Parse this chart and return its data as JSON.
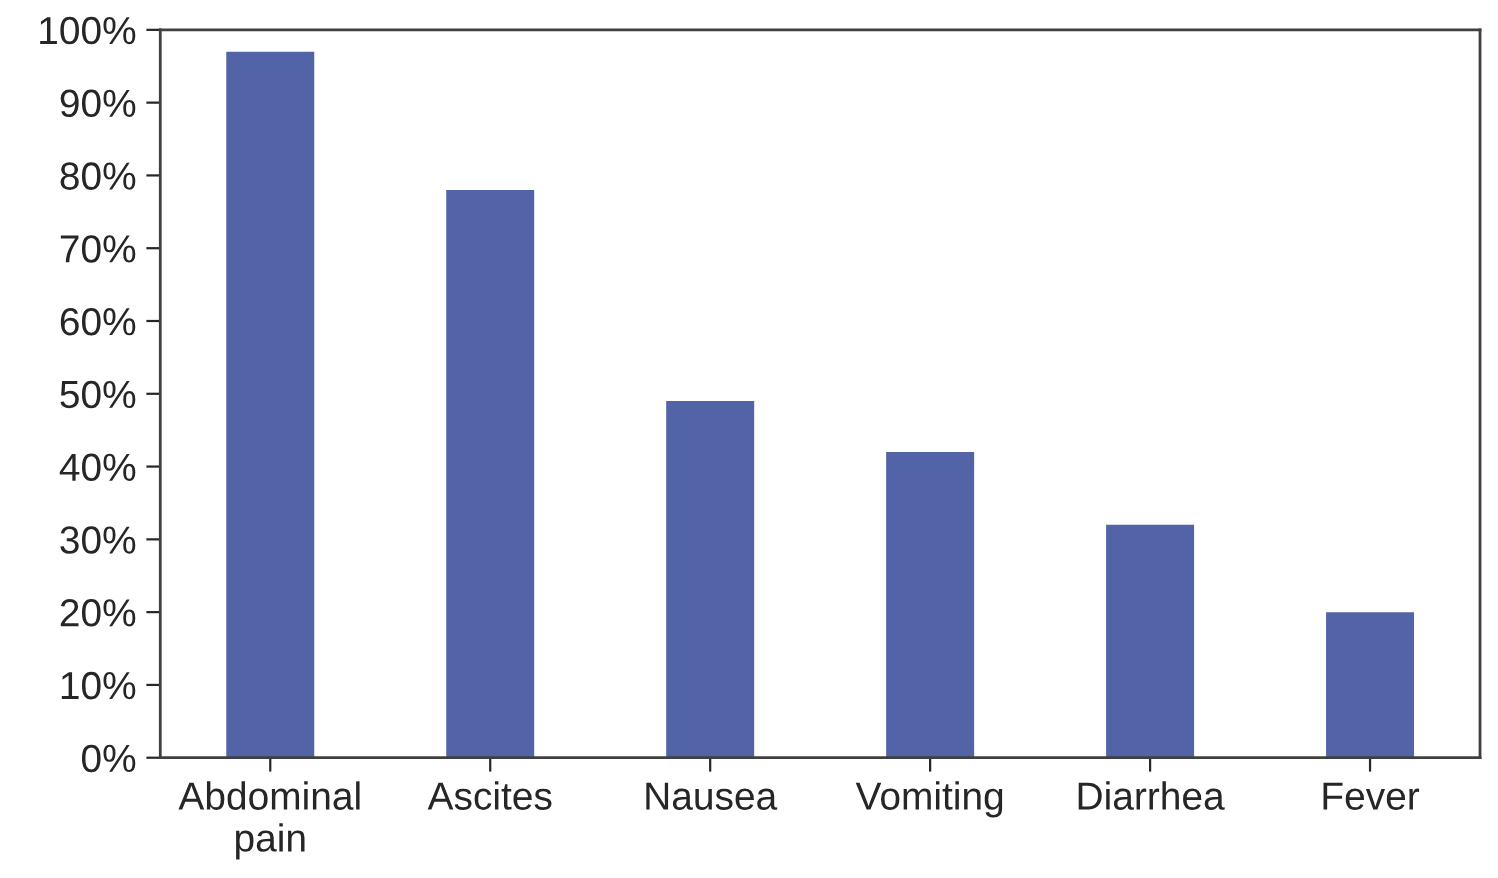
{
  "chart_data": {
    "type": "bar",
    "categories": [
      "Abdominal\npain",
      "Ascites",
      "Nausea",
      "Vomiting",
      "Diarrhea",
      "Fever"
    ],
    "values": [
      97,
      78,
      49,
      42,
      32,
      20
    ],
    "color": "#5263a8",
    "ylim": [
      0,
      100
    ],
    "yticks": [
      {
        "value": 0,
        "label": "0%"
      },
      {
        "value": 10,
        "label": "10%"
      },
      {
        "value": 20,
        "label": "20%"
      },
      {
        "value": 30,
        "label": "30%"
      },
      {
        "value": 40,
        "label": "40%"
      },
      {
        "value": 50,
        "label": "50%"
      },
      {
        "value": 60,
        "label": "60%"
      },
      {
        "value": 70,
        "label": "70%"
      },
      {
        "value": 80,
        "label": "80%"
      },
      {
        "value": 90,
        "label": "90%"
      },
      {
        "value": 100,
        "label": "100%"
      }
    ],
    "grid": false,
    "legend": false
  }
}
